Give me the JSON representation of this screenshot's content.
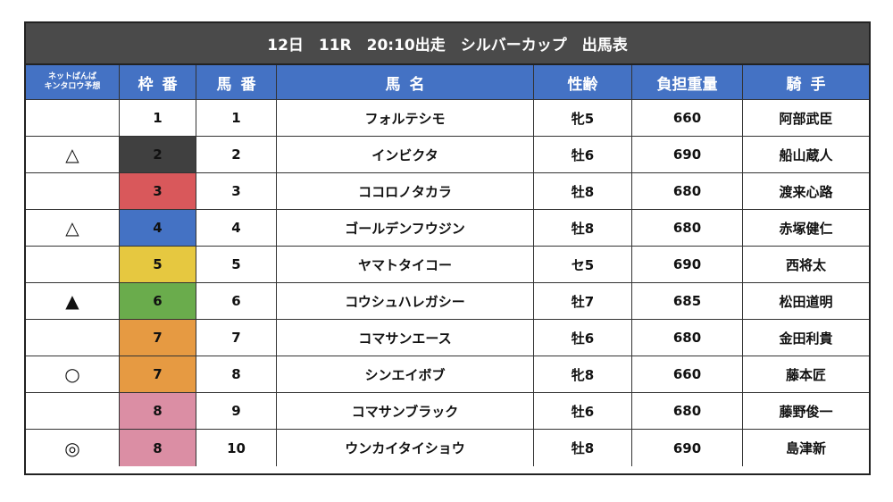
{
  "title": "12日　11R　20:10出走　シルバーカップ　出馬表",
  "headers": {
    "pred_line1": "ネットばんば",
    "pred_line2": "キンタロウ予想",
    "waku": "枠番",
    "uma": "馬番",
    "name": "馬名",
    "sex_age": "性齢",
    "weight": "負担重量",
    "jockey": "騎手"
  },
  "waku_colors": {
    "1": "#ffffff",
    "2": "#404040",
    "3": "#d9585b",
    "4": "#4472c4",
    "5": "#e6c840",
    "6": "#6aac4c",
    "7": "#e69a42",
    "8": "#db8ea4"
  },
  "rows": [
    {
      "pred": "",
      "waku": "1",
      "uma": "1",
      "name": "フォルテシモ",
      "sex_age": "牝5",
      "weight": "660",
      "jockey": "阿部武臣"
    },
    {
      "pred": "△",
      "waku": "2",
      "uma": "2",
      "name": "インビクタ",
      "sex_age": "牡6",
      "weight": "690",
      "jockey": "船山蔵人"
    },
    {
      "pred": "",
      "waku": "3",
      "uma": "3",
      "name": "ココロノタカラ",
      "sex_age": "牡8",
      "weight": "680",
      "jockey": "渡来心路"
    },
    {
      "pred": "△",
      "waku": "4",
      "uma": "4",
      "name": "ゴールデンフウジン",
      "sex_age": "牡8",
      "weight": "680",
      "jockey": "赤塚健仁"
    },
    {
      "pred": "",
      "waku": "5",
      "uma": "5",
      "name": "ヤマトタイコー",
      "sex_age": "セ5",
      "weight": "690",
      "jockey": "西将太"
    },
    {
      "pred": "▲",
      "waku": "6",
      "uma": "6",
      "name": "コウシュハレガシー",
      "sex_age": "牡7",
      "weight": "685",
      "jockey": "松田道明"
    },
    {
      "pred": "",
      "waku": "7",
      "uma": "7",
      "name": "コマサンエース",
      "sex_age": "牡6",
      "weight": "680",
      "jockey": "金田利貴"
    },
    {
      "pred": "○",
      "waku": "7",
      "uma": "8",
      "name": "シンエイボブ",
      "sex_age": "牝8",
      "weight": "660",
      "jockey": "藤本匠"
    },
    {
      "pred": "",
      "waku": "8",
      "uma": "9",
      "name": "コマサンブラック",
      "sex_age": "牡6",
      "weight": "680",
      "jockey": "藤野俊一"
    },
    {
      "pred": "◎",
      "waku": "8",
      "uma": "10",
      "name": "ウンカイタイショウ",
      "sex_age": "牡8",
      "weight": "690",
      "jockey": "島津新"
    }
  ]
}
